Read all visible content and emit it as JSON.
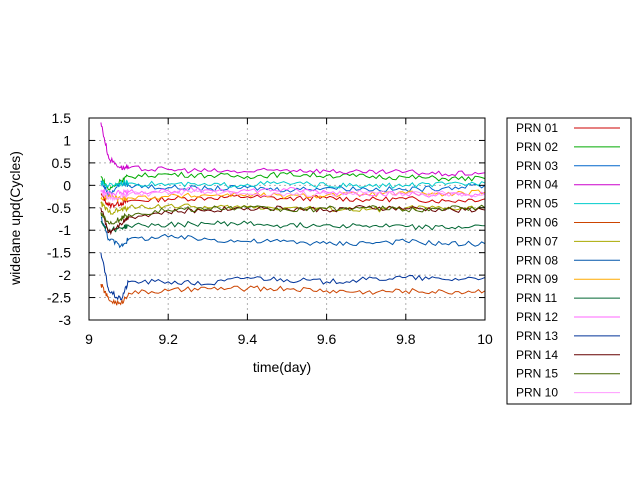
{
  "chart_data": {
    "type": "line",
    "xlabel": "time(day)",
    "ylabel": "widelane upd(Cycles)",
    "xlim": [
      9,
      10
    ],
    "ylim": [
      -3,
      1.5
    ],
    "xticks": [
      9,
      9.2,
      9.4,
      9.6,
      9.8,
      10
    ],
    "xtick_labels": [
      "9",
      "9.2",
      "9.4",
      "9.6",
      "9.8",
      "10"
    ],
    "yticks": [
      -3,
      -2.5,
      -2,
      -1.5,
      -1,
      -0.5,
      0,
      0.5,
      1,
      1.5
    ],
    "ytick_labels": [
      "-3",
      "-2.5",
      "-2",
      "-1.5",
      "-1",
      "-0.5",
      "0",
      "0.5",
      "1",
      "1.5"
    ],
    "grid": true,
    "legend_position": "outside-right",
    "series": [
      {
        "name": "PRN 01",
        "color": "#cc0000",
        "x": [
          9.03,
          9.05,
          9.08,
          9.1,
          9.2,
          9.3,
          9.4,
          9.5,
          9.6,
          9.7,
          9.8,
          9.9,
          10.0
        ],
        "y": [
          -0.2,
          -0.45,
          -0.4,
          -0.35,
          -0.3,
          -0.28,
          -0.25,
          -0.3,
          -0.28,
          -0.32,
          -0.3,
          -0.35,
          -0.3
        ]
      },
      {
        "name": "PRN 02",
        "color": "#00aa00",
        "x": [
          9.03,
          9.05,
          9.08,
          9.1,
          9.2,
          9.3,
          9.4,
          9.5,
          9.6,
          9.7,
          9.8,
          9.9,
          10.0
        ],
        "y": [
          0.2,
          -0.1,
          0.1,
          0.2,
          0.25,
          0.22,
          0.2,
          0.25,
          0.22,
          0.2,
          0.18,
          0.15,
          0.15
        ]
      },
      {
        "name": "PRN 03",
        "color": "#0066cc",
        "x": [
          9.03,
          9.05,
          9.08,
          9.1,
          9.2,
          9.3,
          9.4,
          9.5,
          9.6,
          9.7,
          9.8,
          9.9,
          10.0
        ],
        "y": [
          0.1,
          -0.2,
          0.05,
          0.0,
          -0.05,
          -0.08,
          -0.05,
          -0.1,
          -0.05,
          -0.08,
          -0.1,
          -0.05,
          0.0
        ]
      },
      {
        "name": "PRN 04",
        "color": "#cc00cc",
        "x": [
          9.03,
          9.05,
          9.08,
          9.1,
          9.2,
          9.3,
          9.4,
          9.5,
          9.6,
          9.7,
          9.8,
          9.9,
          10.0
        ],
        "y": [
          1.4,
          0.6,
          0.4,
          0.38,
          0.35,
          0.32,
          0.3,
          0.35,
          0.32,
          0.28,
          0.3,
          0.25,
          0.28
        ]
      },
      {
        "name": "PRN 05",
        "color": "#00cccc",
        "x": [
          9.03,
          9.05,
          9.08,
          9.1,
          9.2,
          9.3,
          9.4,
          9.5,
          9.6,
          9.7,
          9.8,
          9.9,
          10.0
        ],
        "y": [
          0.05,
          0.0,
          0.05,
          0.05,
          0.02,
          0.0,
          0.02,
          0.05,
          0.0,
          -0.02,
          0.0,
          0.02,
          0.05
        ]
      },
      {
        "name": "PRN 06",
        "color": "#cc4400",
        "x": [
          9.03,
          9.05,
          9.08,
          9.1,
          9.2,
          9.3,
          9.4,
          9.5,
          9.6,
          9.7,
          9.8,
          9.9,
          10.0
        ],
        "y": [
          -2.2,
          -2.55,
          -2.65,
          -2.4,
          -2.35,
          -2.3,
          -2.3,
          -2.3,
          -2.35,
          -2.38,
          -2.35,
          -2.38,
          -2.35
        ]
      },
      {
        "name": "PRN 07",
        "color": "#aaaa00",
        "x": [
          9.03,
          9.05,
          9.08,
          9.1,
          9.2,
          9.3,
          9.4,
          9.5,
          9.6,
          9.7,
          9.8,
          9.9,
          10.0
        ],
        "y": [
          -0.4,
          -0.6,
          -0.55,
          -0.5,
          -0.45,
          -0.5,
          -0.48,
          -0.5,
          -0.52,
          -0.55,
          -0.5,
          -0.52,
          -0.5
        ]
      },
      {
        "name": "PRN 08",
        "color": "#0055aa",
        "x": [
          9.03,
          9.05,
          9.08,
          9.1,
          9.2,
          9.3,
          9.4,
          9.5,
          9.6,
          9.7,
          9.8,
          9.9,
          10.0
        ],
        "y": [
          -0.7,
          -1.2,
          -1.35,
          -1.2,
          -1.15,
          -1.2,
          -1.25,
          -1.25,
          -1.3,
          -1.28,
          -1.25,
          -1.3,
          -1.3
        ]
      },
      {
        "name": "PRN 09",
        "color": "#ffaa00",
        "x": [
          9.03,
          9.05,
          9.08,
          9.1,
          9.2,
          9.3,
          9.4,
          9.5,
          9.6,
          9.7,
          9.8,
          9.9,
          10.0
        ],
        "y": [
          -0.3,
          -0.25,
          -0.3,
          -0.28,
          -0.25,
          -0.22,
          -0.2,
          -0.25,
          -0.22,
          -0.2,
          -0.18,
          -0.2,
          -0.15
        ]
      },
      {
        "name": "PRN 11",
        "color": "#006633",
        "x": [
          9.03,
          9.05,
          9.08,
          9.1,
          9.2,
          9.3,
          9.4,
          9.5,
          9.6,
          9.7,
          9.8,
          9.9,
          10.0
        ],
        "y": [
          -0.8,
          -1.0,
          -0.95,
          -0.9,
          -0.88,
          -0.85,
          -0.85,
          -0.9,
          -0.88,
          -0.9,
          -0.92,
          -0.95,
          -0.9
        ]
      },
      {
        "name": "PRN 12",
        "color": "#ff66ff",
        "x": [
          9.03,
          9.05,
          9.08,
          9.1,
          9.2,
          9.3,
          9.4,
          9.5,
          9.6,
          9.7,
          9.8,
          9.9,
          10.0
        ],
        "y": [
          -0.1,
          -0.2,
          -0.15,
          -0.15,
          -0.12,
          -0.1,
          -0.12,
          -0.1,
          -0.15,
          -0.18,
          -0.2,
          -0.22,
          -0.2
        ]
      },
      {
        "name": "PRN 13",
        "color": "#003399",
        "x": [
          9.03,
          9.05,
          9.08,
          9.1,
          9.2,
          9.3,
          9.4,
          9.5,
          9.6,
          9.7,
          9.8,
          9.9,
          10.0
        ],
        "y": [
          -1.5,
          -2.35,
          -2.55,
          -2.15,
          -2.15,
          -2.2,
          -2.05,
          -2.1,
          -2.15,
          -2.1,
          -2.05,
          -2.1,
          -2.05
        ]
      },
      {
        "name": "PRN 14",
        "color": "#660000",
        "x": [
          9.03,
          9.05,
          9.08,
          9.1,
          9.2,
          9.3,
          9.4,
          9.5,
          9.6,
          9.7,
          9.8,
          9.9,
          10.0
        ],
        "y": [
          -0.5,
          -1.05,
          -0.85,
          -0.7,
          -0.6,
          -0.55,
          -0.5,
          -0.52,
          -0.55,
          -0.5,
          -0.52,
          -0.55,
          -0.55
        ]
      },
      {
        "name": "PRN 15",
        "color": "#446600",
        "x": [
          9.03,
          9.05,
          9.08,
          9.1,
          9.2,
          9.3,
          9.4,
          9.5,
          9.6,
          9.7,
          9.8,
          9.9,
          10.0
        ],
        "y": [
          -0.6,
          -0.85,
          -0.75,
          -0.65,
          -0.55,
          -0.52,
          -0.5,
          -0.55,
          -0.52,
          -0.5,
          -0.55,
          -0.52,
          -0.5
        ]
      },
      {
        "name": "PRN 10",
        "color": "#ff99ff",
        "x": [
          9.03,
          9.05,
          9.08,
          9.1,
          9.2,
          9.3,
          9.4,
          9.5,
          9.6,
          9.7,
          9.8,
          9.9,
          10.0
        ],
        "y": [
          -0.15,
          -0.3,
          -0.25,
          -0.2,
          -0.18,
          -0.15,
          -0.2,
          -0.18,
          -0.2,
          -0.15,
          -0.2,
          -0.18,
          -0.2
        ]
      }
    ]
  }
}
